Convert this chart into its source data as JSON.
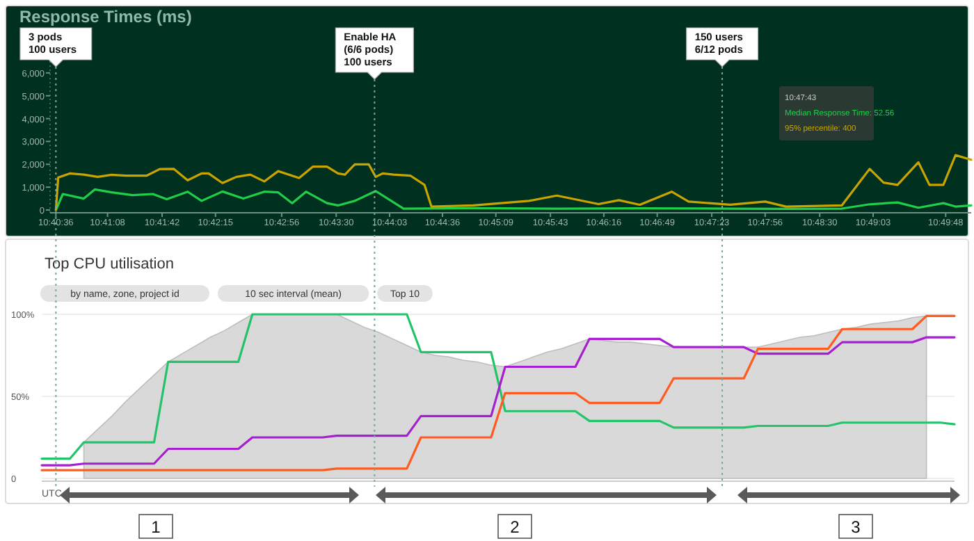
{
  "chart_data": [
    {
      "type": "line",
      "title": "Response Times (ms)",
      "xlim": [
        10.6757,
        10.8344
      ],
      "xticks": [
        {
          "value": 10.6767,
          "label": "10:40:36"
        },
        {
          "value": 10.6856,
          "label": "10:41:08"
        },
        {
          "value": 10.695,
          "label": "10:41:42"
        },
        {
          "value": 10.7042,
          "label": "10:42:15"
        },
        {
          "value": 10.7156,
          "label": "10:42:56"
        },
        {
          "value": 10.725,
          "label": "10:43:30"
        },
        {
          "value": 10.7342,
          "label": "10:44:03"
        },
        {
          "value": 10.7433,
          "label": "10:44:36"
        },
        {
          "value": 10.7525,
          "label": "10:45:09"
        },
        {
          "value": 10.7619,
          "label": "10:45:43"
        },
        {
          "value": 10.7711,
          "label": "10:46:16"
        },
        {
          "value": 10.7803,
          "label": "10:46:49"
        },
        {
          "value": 10.7897,
          "label": "10:47:23"
        },
        {
          "value": 10.7989,
          "label": "10:47:56"
        },
        {
          "value": 10.8083,
          "label": "10:48:30"
        },
        {
          "value": 10.8175,
          "label": "10:49:03"
        },
        {
          "value": 10.83,
          "label": "10:49:48"
        }
      ],
      "ylim": [
        0,
        7000
      ],
      "yticks": [
        0,
        {
          "value": 1000,
          "label": "1,000"
        },
        {
          "value": 2000,
          "label": "2,000"
        },
        {
          "value": 3000,
          "label": "3,000"
        },
        {
          "value": 4000,
          "label": "4,000"
        },
        {
          "value": 5000,
          "label": "5,000"
        },
        {
          "value": 6000,
          "label": "6,000"
        },
        {
          "value": 7000,
          "label": null
        }
      ],
      "series": [
        {
          "color": "#1fcf4a",
          "x": [
            10.6767,
            10.6779,
            10.6815,
            10.6834,
            10.6863,
            10.6899,
            10.6934,
            10.6958,
            10.6994,
            10.7018,
            10.7054,
            10.709,
            10.7126,
            10.715,
            10.7174,
            10.7198,
            10.7234,
            10.7253,
            10.7282,
            10.7318,
            10.7349,
            10.7366,
            10.7486,
            10.763,
            10.7773,
            10.7929,
            10.8025,
            10.8121,
            10.8169,
            10.8217,
            10.8253,
            10.8296,
            10.8317,
            10.8344
          ],
          "values": [
            0,
            700,
            500,
            900,
            770,
            650,
            700,
            470,
            800,
            400,
            810,
            500,
            800,
            770,
            300,
            800,
            300,
            200,
            400,
            830,
            330,
            60,
            80,
            60,
            70,
            60,
            50,
            60,
            250,
            330,
            100,
            300,
            150,
            200
          ]
        },
        {
          "color": "#c9a400",
          "x": [
            10.6767,
            10.6771,
            10.6791,
            10.6815,
            10.6839,
            10.6863,
            10.6887,
            10.6923,
            10.6946,
            10.697,
            10.6994,
            10.7018,
            10.703,
            10.7054,
            10.7078,
            10.7102,
            10.7126,
            10.715,
            10.7186,
            10.721,
            10.7234,
            10.7253,
            10.7265,
            10.7282,
            10.7306,
            10.7318,
            10.733,
            10.7349,
            10.7378,
            10.7402,
            10.7414,
            10.7486,
            10.7582,
            10.763,
            10.7702,
            10.7737,
            10.7773,
            10.7828,
            10.7857,
            10.7929,
            10.7989,
            10.8025,
            10.8121,
            10.8169,
            10.8193,
            10.8217,
            10.8253,
            10.8272,
            10.8296,
            10.8317,
            10.8344
          ],
          "values": [
            0,
            1420,
            1600,
            1550,
            1450,
            1540,
            1500,
            1500,
            1790,
            1800,
            1300,
            1600,
            1600,
            1180,
            1450,
            1550,
            1250,
            1700,
            1400,
            1900,
            1900,
            1600,
            1550,
            2000,
            2000,
            1450,
            1600,
            1550,
            1500,
            1100,
            150,
            200,
            400,
            630,
            260,
            430,
            230,
            800,
            370,
            230,
            370,
            150,
            200,
            1800,
            1200,
            1100,
            2090,
            1100,
            1100,
            2400,
            2200
          ]
        }
      ],
      "ref_lines": [
        {
          "axis": "x",
          "value": 10.6767,
          "label": "3 pods\n100 users",
          "line_style": "dotted",
          "color": "#7fa596"
        },
        {
          "axis": "x",
          "value": 10.7316,
          "label": "Enable HA\n(6/6 pods)\n100 users",
          "line_style": "dotted",
          "color": "#7fa596"
        },
        {
          "axis": "x",
          "value": 10.7915,
          "label": "150 users\n6/12 pods",
          "line_style": "dotted",
          "color": "#7fa596"
        }
      ],
      "annotations": [
        "10:47:43",
        "Median Response Time: 52.56",
        "95% percentile: 400"
      ]
    },
    {
      "type": "line",
      "title": "Top CPU utilisation",
      "xlabel": "UTC",
      "categories": [
        null,
        null,
        null,
        null,
        null,
        null,
        null,
        null,
        null,
        null,
        null,
        null,
        null,
        null,
        null,
        null,
        null,
        null,
        null,
        null,
        null,
        null,
        null,
        null,
        null,
        null,
        null,
        null,
        null,
        null,
        null,
        null,
        null,
        null,
        null,
        null,
        null,
        null,
        null,
        null,
        null,
        null,
        null,
        null,
        null,
        null,
        null,
        null,
        null,
        null,
        null,
        null,
        null,
        null,
        null,
        null,
        null,
        null,
        null,
        null,
        null,
        null,
        null,
        null,
        null,
        null
      ],
      "ylim": [
        0,
        100
      ],
      "yticks": [
        0,
        {
          "value": 50,
          "label": "50%"
        },
        {
          "value": 100,
          "label": "100%"
        }
      ],
      "grid": "y",
      "tick_labels": "y",
      "series": [
        {
          "type": "area",
          "color": "#d9d9d9",
          "values": [
            null,
            null,
            null,
            22,
            30,
            38,
            47,
            55,
            63,
            71,
            76,
            81,
            86,
            90,
            95,
            100,
            100,
            100,
            100,
            100,
            100,
            100,
            96,
            92,
            89,
            85,
            81,
            77,
            75,
            74,
            72,
            71,
            69,
            68,
            71,
            74,
            77,
            79,
            82,
            85,
            84,
            83,
            83,
            82,
            81,
            80,
            80,
            80,
            80,
            80,
            80,
            80,
            82,
            84,
            86,
            87,
            89,
            91,
            92,
            94,
            95,
            96,
            98,
            99,
            null,
            null
          ]
        },
        {
          "color": "#22c36a",
          "values": [
            12,
            12,
            12,
            22,
            22,
            22,
            22,
            22,
            22,
            71,
            71,
            71,
            71,
            71,
            71,
            100,
            100,
            100,
            100,
            100,
            100,
            100,
            100,
            100,
            100,
            100,
            100,
            77,
            77,
            77,
            77,
            77,
            77,
            41,
            41,
            41,
            41,
            41,
            41,
            35,
            35,
            35,
            35,
            35,
            35,
            31,
            31,
            31,
            31,
            31,
            31,
            32,
            32,
            32,
            32,
            32,
            32,
            34,
            34,
            34,
            34,
            34,
            34,
            34,
            34,
            33
          ]
        },
        {
          "color": "#a51fd0",
          "values": [
            8,
            8,
            8,
            9,
            9,
            9,
            9,
            9,
            9,
            18,
            18,
            18,
            18,
            18,
            18,
            25,
            25,
            25,
            25,
            25,
            25,
            26,
            26,
            26,
            26,
            26,
            26,
            38,
            38,
            38,
            38,
            38,
            38,
            68,
            68,
            68,
            68,
            68,
            68,
            85,
            85,
            85,
            85,
            85,
            85,
            80,
            80,
            80,
            80,
            80,
            80,
            76,
            76,
            76,
            76,
            76,
            76,
            83,
            83,
            83,
            83,
            83,
            83,
            86,
            86,
            86
          ]
        },
        {
          "color": "#ff5a1f",
          "values": [
            5,
            5,
            5,
            5,
            5,
            5,
            5,
            5,
            5,
            5,
            5,
            5,
            5,
            5,
            5,
            5,
            5,
            5,
            5,
            5,
            5,
            6,
            6,
            6,
            6,
            6,
            6,
            25,
            25,
            25,
            25,
            25,
            25,
            52,
            52,
            52,
            52,
            52,
            52,
            46,
            46,
            46,
            46,
            46,
            46,
            61,
            61,
            61,
            61,
            61,
            61,
            79,
            79,
            79,
            79,
            79,
            79,
            91,
            91,
            91,
            91,
            91,
            91,
            99,
            99,
            99
          ]
        }
      ],
      "annotations": [
        "by name, zone, project id",
        "10 sec interval (mean)",
        "Top 10",
        "1",
        "2",
        "3"
      ]
    }
  ]
}
